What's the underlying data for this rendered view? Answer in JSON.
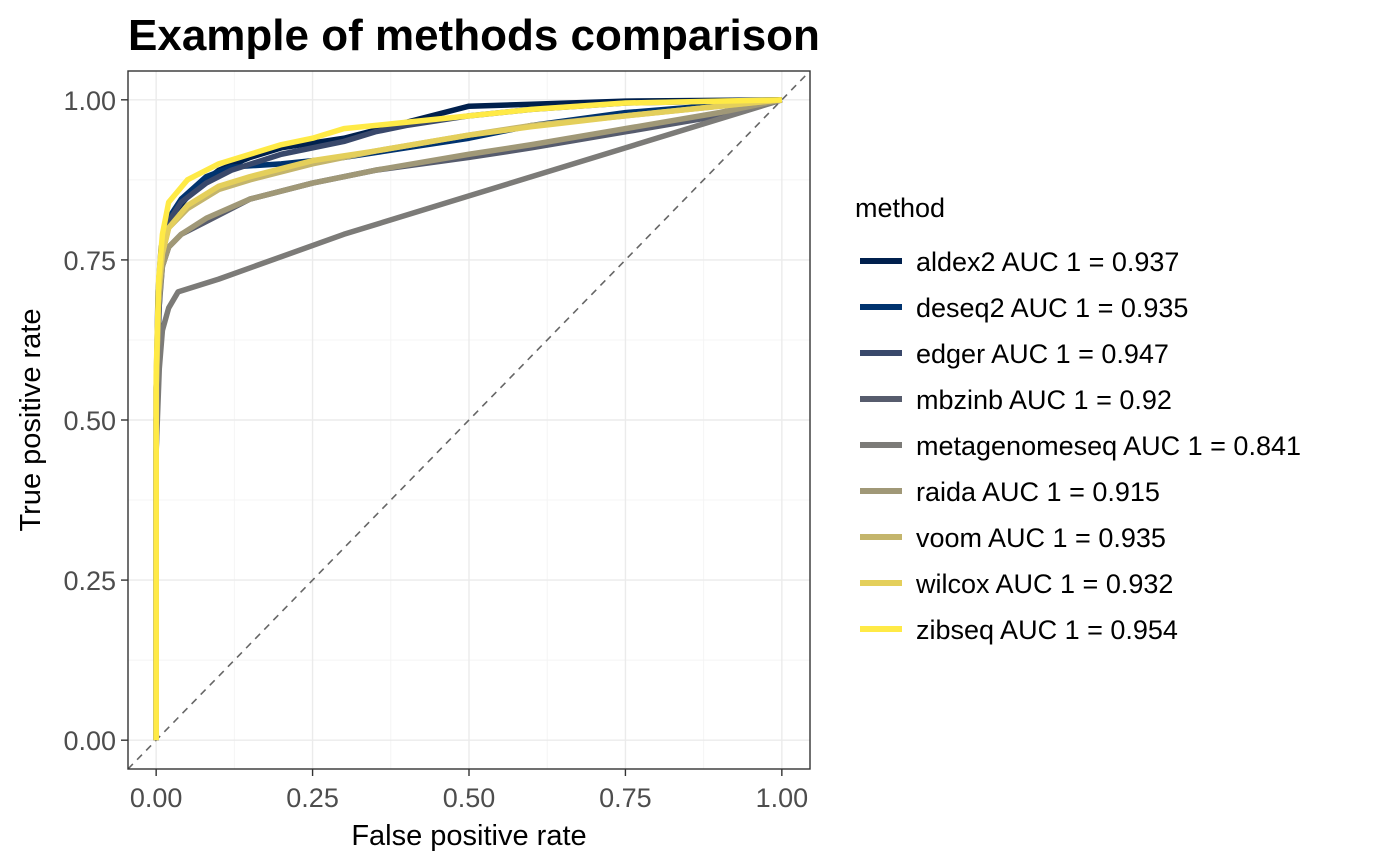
{
  "chart_data": {
    "type": "line",
    "title": "Example of methods comparison",
    "xlabel": "False positive rate",
    "ylabel": "True positive rate",
    "xlim": [
      0,
      1
    ],
    "ylim": [
      0,
      1
    ],
    "x_ticks": [
      "0.00",
      "0.25",
      "0.50",
      "0.75",
      "1.00"
    ],
    "y_ticks": [
      "0.00",
      "0.25",
      "0.50",
      "0.75",
      "1.00"
    ],
    "grid": true,
    "diagonal_reference": true,
    "legend": {
      "title": "method",
      "position": "right"
    },
    "series": [
      {
        "name": "aldex2 AUC 1 = 0.937",
        "color": "#00204d",
        "points": [
          [
            0,
            0
          ],
          [
            0,
            0.5
          ],
          [
            0.003,
            0.65
          ],
          [
            0.008,
            0.74
          ],
          [
            0.015,
            0.79
          ],
          [
            0.03,
            0.825
          ],
          [
            0.06,
            0.86
          ],
          [
            0.1,
            0.89
          ],
          [
            0.15,
            0.91
          ],
          [
            0.2,
            0.925
          ],
          [
            0.3,
            0.94
          ],
          [
            0.4,
            0.965
          ],
          [
            0.5,
            0.99
          ],
          [
            0.6,
            0.993
          ],
          [
            0.75,
            0.998
          ],
          [
            1,
            1
          ]
        ]
      },
      {
        "name": "deseq2 AUC 1 = 0.935",
        "color": "#00336f",
        "points": [
          [
            0,
            0
          ],
          [
            0,
            0.45
          ],
          [
            0.004,
            0.66
          ],
          [
            0.009,
            0.76
          ],
          [
            0.02,
            0.815
          ],
          [
            0.04,
            0.845
          ],
          [
            0.08,
            0.88
          ],
          [
            0.12,
            0.895
          ],
          [
            0.2,
            0.9
          ],
          [
            0.3,
            0.91
          ],
          [
            0.4,
            0.925
          ],
          [
            0.5,
            0.94
          ],
          [
            0.6,
            0.96
          ],
          [
            0.75,
            0.98
          ],
          [
            1,
            1
          ]
        ]
      },
      {
        "name": "edger AUC 1 = 0.947",
        "color": "#39486b",
        "points": [
          [
            0,
            0
          ],
          [
            0,
            0.55
          ],
          [
            0.003,
            0.7
          ],
          [
            0.008,
            0.77
          ],
          [
            0.02,
            0.81
          ],
          [
            0.04,
            0.84
          ],
          [
            0.08,
            0.87
          ],
          [
            0.12,
            0.89
          ],
          [
            0.2,
            0.915
          ],
          [
            0.3,
            0.935
          ],
          [
            0.35,
            0.95
          ],
          [
            0.4,
            0.96
          ],
          [
            0.5,
            0.975
          ],
          [
            0.6,
            0.985
          ],
          [
            0.75,
            0.995
          ],
          [
            1,
            1
          ]
        ]
      },
      {
        "name": "mbzinb AUC 1 = 0.92",
        "color": "#575c6d",
        "points": [
          [
            0,
            0
          ],
          [
            0,
            0.5
          ],
          [
            0.005,
            0.68
          ],
          [
            0.01,
            0.74
          ],
          [
            0.02,
            0.77
          ],
          [
            0.04,
            0.79
          ],
          [
            0.08,
            0.81
          ],
          [
            0.15,
            0.845
          ],
          [
            0.25,
            0.87
          ],
          [
            0.35,
            0.89
          ],
          [
            0.5,
            0.91
          ],
          [
            0.6,
            0.925
          ],
          [
            0.75,
            0.95
          ],
          [
            0.9,
            0.975
          ],
          [
            1,
            1
          ]
        ]
      },
      {
        "name": "metagenomeseq AUC 1 = 0.841",
        "color": "#7c7b78",
        "points": [
          [
            0,
            0
          ],
          [
            0,
            0.45
          ],
          [
            0.005,
            0.58
          ],
          [
            0.01,
            0.64
          ],
          [
            0.02,
            0.675
          ],
          [
            0.035,
            0.7
          ],
          [
            0.1,
            0.72
          ],
          [
            0.3,
            0.79
          ],
          [
            0.5,
            0.85
          ],
          [
            0.75,
            0.925
          ],
          [
            1,
            1
          ]
        ]
      },
      {
        "name": "raida AUC 1 = 0.915",
        "color": "#a09877",
        "points": [
          [
            0,
            0
          ],
          [
            0,
            0.55
          ],
          [
            0.004,
            0.68
          ],
          [
            0.01,
            0.74
          ],
          [
            0.02,
            0.77
          ],
          [
            0.04,
            0.79
          ],
          [
            0.08,
            0.815
          ],
          [
            0.15,
            0.845
          ],
          [
            0.25,
            0.87
          ],
          [
            0.35,
            0.89
          ],
          [
            0.5,
            0.915
          ],
          [
            0.6,
            0.93
          ],
          [
            0.75,
            0.955
          ],
          [
            0.9,
            0.98
          ],
          [
            1,
            1
          ]
        ]
      },
      {
        "name": "voom AUC 1 = 0.935",
        "color": "#c4b56c",
        "points": [
          [
            0,
            0
          ],
          [
            0,
            0.55
          ],
          [
            0.004,
            0.7
          ],
          [
            0.01,
            0.76
          ],
          [
            0.02,
            0.8
          ],
          [
            0.05,
            0.83
          ],
          [
            0.1,
            0.86
          ],
          [
            0.15,
            0.875
          ],
          [
            0.25,
            0.9
          ],
          [
            0.35,
            0.92
          ],
          [
            0.5,
            0.945
          ],
          [
            0.6,
            0.96
          ],
          [
            0.75,
            0.975
          ],
          [
            0.9,
            0.99
          ],
          [
            1,
            1
          ]
        ]
      },
      {
        "name": "wilcox AUC 1 = 0.932",
        "color": "#e4cf5b",
        "points": [
          [
            0,
            0
          ],
          [
            0,
            0.55
          ],
          [
            0.004,
            0.7
          ],
          [
            0.01,
            0.76
          ],
          [
            0.02,
            0.8
          ],
          [
            0.05,
            0.835
          ],
          [
            0.1,
            0.865
          ],
          [
            0.15,
            0.88
          ],
          [
            0.25,
            0.905
          ],
          [
            0.35,
            0.92
          ],
          [
            0.5,
            0.945
          ],
          [
            0.6,
            0.958
          ],
          [
            0.75,
            0.975
          ],
          [
            0.9,
            0.99
          ],
          [
            1,
            1
          ]
        ]
      },
      {
        "name": "zibseq AUC 1 = 0.954",
        "color": "#ffea46",
        "points": [
          [
            0,
            0
          ],
          [
            0,
            0.57
          ],
          [
            0.004,
            0.72
          ],
          [
            0.01,
            0.79
          ],
          [
            0.02,
            0.84
          ],
          [
            0.05,
            0.875
          ],
          [
            0.1,
            0.9
          ],
          [
            0.15,
            0.915
          ],
          [
            0.2,
            0.93
          ],
          [
            0.25,
            0.94
          ],
          [
            0.3,
            0.955
          ],
          [
            0.4,
            0.965
          ],
          [
            0.5,
            0.975
          ],
          [
            0.6,
            0.985
          ],
          [
            0.75,
            0.995
          ],
          [
            1,
            1
          ]
        ]
      }
    ]
  }
}
